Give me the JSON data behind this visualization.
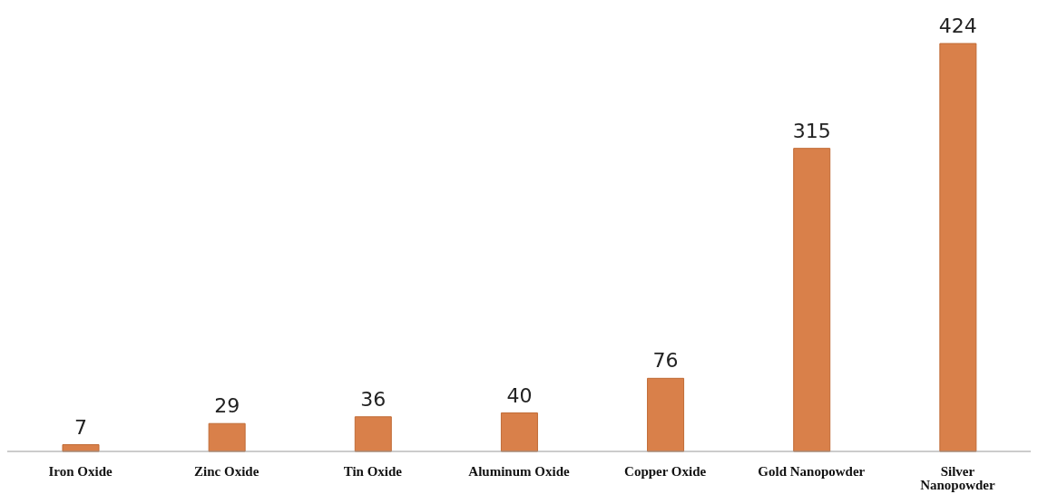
{
  "chart_data": {
    "type": "bar",
    "categories": [
      "Iron Oxide",
      "Zinc Oxide",
      "Tin Oxide",
      "Aluminum Oxide",
      "Copper Oxide",
      "Gold Nanopowder",
      "Silver Nanopowder"
    ],
    "values": [
      7,
      29,
      36,
      40,
      76,
      315,
      424
    ],
    "color": "#d9804a",
    "data_labels": true
  }
}
